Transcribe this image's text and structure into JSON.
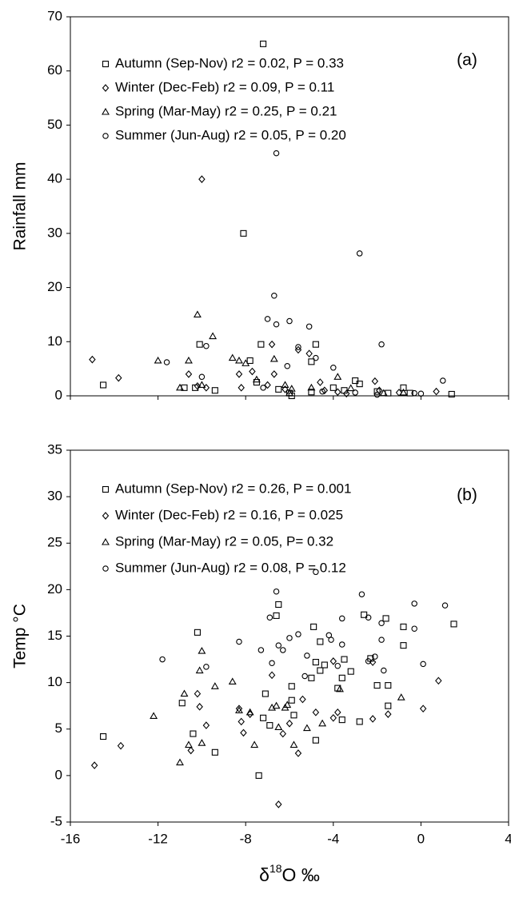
{
  "chart_data": [
    {
      "type": "scatter",
      "annotation": "(a)",
      "y_label": "Rainfall mm",
      "xlim": [
        -16,
        4
      ],
      "xticks": [
        -16,
        -12,
        -8,
        -4,
        0,
        4
      ],
      "ylim": [
        0,
        70
      ],
      "yticks": [
        0,
        10,
        20,
        30,
        40,
        50,
        60,
        70
      ],
      "series": [
        {
          "name": "Autumn (Sep-Nov) r2 = 0.02, P = 0.33",
          "marker": "square",
          "color": "#000000",
          "x": [
            -7.2,
            -8.1,
            -10.1,
            -7.3,
            -4.8,
            -7.8,
            -5,
            -3,
            -14.5,
            -10.8,
            -9.4,
            -10.3,
            -6,
            -5.9,
            -4,
            -1.5,
            -2.8,
            -0.8,
            -0.5,
            1.4,
            -2,
            -5,
            -6.5,
            -7.5,
            -3.5
          ],
          "values": [
            65,
            30,
            9.5,
            9.5,
            9.5,
            6.5,
            6.3,
            2.8,
            2,
            1.5,
            1,
            1.5,
            0.5,
            0,
            1.5,
            0.5,
            2.2,
            1.5,
            0.5,
            0.3,
            0.8,
            0.7,
            1.2,
            2.5,
            1
          ]
        },
        {
          "name": "Winter (Dec-Feb) r2 = 0.09, P = 0.11",
          "marker": "diamond",
          "color": "#000000",
          "x": [
            -15,
            -13.8,
            -10,
            -10.2,
            -10.6,
            -8.3,
            -8.2,
            -7.7,
            -6.8,
            -6.7,
            -5.6,
            -5.1,
            -4.6,
            -4.4,
            -3.8,
            -3.4,
            -2.1,
            -1.9,
            -1,
            0.7,
            -6.2,
            -7,
            -9.8
          ],
          "values": [
            6.7,
            3.3,
            40,
            1.8,
            4,
            4,
            1.5,
            4.5,
            9.5,
            4,
            8.5,
            7.8,
            2.5,
            1,
            0.7,
            0.4,
            2.7,
            1,
            0.6,
            0.8,
            1.2,
            2,
            1.5
          ]
        },
        {
          "name": "Spring (Mar-May) r2 = 0.25, P = 0.21",
          "marker": "triangle",
          "color": "#000000",
          "x": [
            -12,
            -11,
            -10.6,
            -10.2,
            -9.5,
            -8.6,
            -8.3,
            -8,
            -7.5,
            -6.7,
            -6.2,
            -5.9,
            -5,
            -3.8,
            -3.2,
            -1.7,
            -0.8,
            -10,
            -6
          ],
          "values": [
            6.5,
            1.5,
            6.5,
            15,
            11,
            7,
            6.5,
            6,
            3,
            6.8,
            2,
            1.3,
            1.5,
            3.5,
            1.4,
            0.5,
            0.6,
            2,
            0.5
          ]
        },
        {
          "name": "Summer (Jun-Aug) r2 = 0.05, P = 0.20",
          "marker": "circle",
          "color": "#000000",
          "x": [
            -11.6,
            -9.8,
            -6.6,
            -2.8,
            -6.7,
            -7,
            -6,
            -6.6,
            -5.1,
            -4.8,
            -5.6,
            -4,
            -6.1,
            -1.8,
            1,
            -10,
            -7.2,
            -4.5,
            -3,
            -0.3,
            -2,
            0
          ],
          "values": [
            6.2,
            9.2,
            44.8,
            26.3,
            18.5,
            14.2,
            13.8,
            13.2,
            12.8,
            7,
            9,
            5.2,
            5.5,
            9.5,
            2.8,
            3.5,
            1.5,
            0.8,
            0.6,
            0.5,
            0.2,
            0.4
          ]
        }
      ]
    },
    {
      "type": "scatter",
      "annotation": "(b)",
      "y_label": "Temp °C",
      "x_label": "δ18O ‰",
      "xlim": [
        -16,
        4
      ],
      "xticks": [
        -16,
        -12,
        -8,
        -4,
        0,
        4
      ],
      "ylim": [
        -5,
        35
      ],
      "yticks": [
        -5,
        0,
        5,
        10,
        15,
        20,
        25,
        30,
        35
      ],
      "series": [
        {
          "name": "Autumn (Sep-Nov) r2 = 0.26, P = 0.001",
          "marker": "square",
          "color": "#000000",
          "x": [
            -14.5,
            -10.9,
            -10.4,
            -10.2,
            -9.4,
            -7.4,
            -6.6,
            -6.5,
            -7.1,
            -7.2,
            -6.9,
            -5.9,
            -5.9,
            -5.8,
            -5,
            -4.8,
            -4.6,
            -4.9,
            -4.6,
            -4.4,
            -3.8,
            -3.6,
            -3.2,
            -3.5,
            -3.6,
            -2.8,
            -2.6,
            -2.3,
            -2,
            -1.5,
            -1.5,
            -1.6,
            -0.8,
            -0.8,
            1.5,
            -4.8
          ],
          "values": [
            4.2,
            7.8,
            4.5,
            15.4,
            2.5,
            0,
            17.2,
            18.4,
            8.8,
            6.2,
            5.4,
            8.1,
            9.6,
            6.5,
            10.5,
            12.2,
            14.4,
            16,
            11.3,
            11.9,
            9.4,
            10.5,
            11.2,
            12.5,
            6,
            5.8,
            17.3,
            12.6,
            9.7,
            7.5,
            9.7,
            16.9,
            16,
            14,
            16.3,
            3.8
          ]
        },
        {
          "name": "Winter (Dec-Feb) r2 = 0.16, P = 0.025",
          "marker": "diamond",
          "color": "#000000",
          "x": [
            -14.9,
            -13.7,
            -10.5,
            -10.1,
            -10.2,
            -9.8,
            -8.3,
            -8.2,
            -8.1,
            -7.8,
            -6.5,
            -6.8,
            -6.3,
            -6,
            -5.6,
            -4.8,
            -4,
            -3.8,
            -4,
            -2.2,
            -2.2,
            -1.5,
            0.8,
            0.1,
            -5.4
          ],
          "values": [
            1.1,
            3.2,
            2.7,
            7.4,
            8.8,
            5.4,
            7.2,
            5.8,
            4.6,
            6.6,
            -3.1,
            10.8,
            4.5,
            5.6,
            2.4,
            6.8,
            6.2,
            6.8,
            12.3,
            12.2,
            6.1,
            6.6,
            10.2,
            7.2,
            8.2
          ]
        },
        {
          "name": "Spring (Mar-May) r2 = 0.05, P= 0.32",
          "marker": "triangle",
          "color": "#000000",
          "x": [
            -12.2,
            -11,
            -10.8,
            -10.6,
            -10.1,
            -10,
            -9.4,
            -8.6,
            -8.3,
            -7.8,
            -7.6,
            -6.8,
            -6.6,
            -6.2,
            -6.1,
            -5.8,
            -5.2,
            -4.5,
            -3.7,
            -0.9,
            -10,
            -6.5
          ],
          "values": [
            6.4,
            1.4,
            8.8,
            3.3,
            11.3,
            13.4,
            9.6,
            10.1,
            7,
            6.8,
            3.3,
            7.3,
            7.5,
            7.3,
            7.6,
            3.3,
            5.1,
            5.6,
            9.3,
            8.4,
            3.5,
            5.2
          ]
        },
        {
          "name": "Summer (Jun-Aug) r2 = 0.08, P = 0.12",
          "marker": "circle",
          "color": "#000000",
          "x": [
            -11.8,
            -9.8,
            -8.3,
            -7.3,
            -6.9,
            -6.8,
            -6.6,
            -6.5,
            -6.3,
            -6,
            -5.6,
            -5.3,
            -5.2,
            -4.8,
            -4.2,
            -4.1,
            -3.6,
            -3.6,
            -3.8,
            -2.7,
            -2.4,
            -2.1,
            -1.8,
            -1.8,
            -1.7,
            -0.3,
            -0.3,
            0.1,
            1.1,
            -2.4
          ],
          "values": [
            12.5,
            11.7,
            14.4,
            13.5,
            17,
            12.1,
            19.8,
            14,
            13.5,
            14.8,
            15.2,
            10.7,
            12.9,
            21.9,
            15.1,
            14.6,
            14.1,
            16.9,
            11.8,
            19.5,
            17,
            12.8,
            14.6,
            16.4,
            11.3,
            18.5,
            15.8,
            12,
            18.3,
            12.3
          ]
        }
      ]
    }
  ]
}
